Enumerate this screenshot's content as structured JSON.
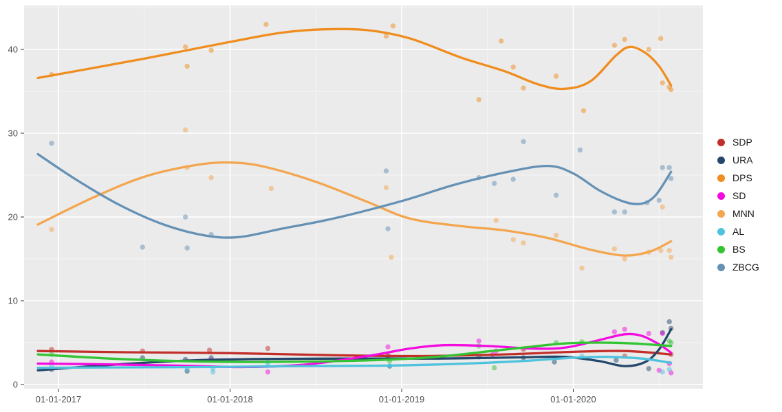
{
  "title": "",
  "background": {
    "page": "#ffffff",
    "panel": "#ebebeb",
    "grid_major": "#ffffff",
    "grid_minor": "#f7f7f7"
  },
  "axis": {
    "tick_color": "#4d4d4d",
    "tick_font_px": 13
  },
  "legend": {
    "position": "right",
    "title": ""
  },
  "chart_data": {
    "type": "scatter",
    "subtype": "scatter points with loess smooth lines",
    "title": "",
    "xlabel": "",
    "ylabel": "",
    "x_axis": {
      "ticks": [
        {
          "t": 2017.0,
          "label": "01-01-2017"
        },
        {
          "t": 2018.0,
          "label": "01-01-2018"
        },
        {
          "t": 2019.0,
          "label": "01-01-2019"
        },
        {
          "t": 2020.0,
          "label": "01-01-2020"
        }
      ],
      "minor": [
        2017.5,
        2018.5,
        2019.5,
        2020.5
      ],
      "range": [
        2016.8,
        2020.76
      ]
    },
    "y_axis": {
      "ticks": [
        0,
        10,
        20,
        30,
        40
      ],
      "minor": [
        5,
        15,
        25,
        35,
        45
      ],
      "range": [
        -0.5,
        45.2
      ]
    },
    "grid": true,
    "legend_position": "right",
    "series": [
      {
        "name": "SDP",
        "color": "#c22f2a",
        "points": [
          [
            2016.96,
            4.2
          ],
          [
            2017.49,
            4.0
          ],
          [
            2017.88,
            4.1
          ],
          [
            2018.22,
            4.3
          ],
          [
            2018.92,
            3.5
          ],
          [
            2019.71,
            4.2
          ],
          [
            2020.3,
            3.4
          ],
          [
            2020.57,
            3.6
          ]
        ],
        "smooth": [
          [
            2016.88,
            4.0
          ],
          [
            2017.4,
            3.85
          ],
          [
            2018.0,
            3.75
          ],
          [
            2018.6,
            3.5
          ],
          [
            2019.1,
            3.4
          ],
          [
            2019.6,
            3.6
          ],
          [
            2020.0,
            3.9
          ],
          [
            2020.3,
            4.0
          ],
          [
            2020.57,
            3.6
          ]
        ]
      },
      {
        "name": "URA",
        "color": "#24486b",
        "points": [
          [
            2016.96,
            1.8
          ],
          [
            2017.49,
            3.2
          ],
          [
            2017.74,
            3.0
          ],
          [
            2017.75,
            1.6
          ],
          [
            2017.89,
            3.2
          ],
          [
            2018.92,
            3.3
          ],
          [
            2018.93,
            2.2
          ],
          [
            2019.45,
            3.3
          ],
          [
            2019.71,
            3.2
          ],
          [
            2019.89,
            2.7
          ],
          [
            2020.25,
            2.9
          ],
          [
            2020.44,
            1.9
          ],
          [
            2020.52,
            6.2
          ],
          [
            2020.56,
            7.5
          ],
          [
            2020.57,
            6.7
          ]
        ],
        "smooth": [
          [
            2016.88,
            1.7
          ],
          [
            2017.2,
            2.2
          ],
          [
            2017.5,
            2.6
          ],
          [
            2017.8,
            2.9
          ],
          [
            2018.2,
            3.05
          ],
          [
            2018.7,
            3.1
          ],
          [
            2019.2,
            3.1
          ],
          [
            2019.7,
            3.25
          ],
          [
            2019.95,
            3.3
          ],
          [
            2020.15,
            2.8
          ],
          [
            2020.3,
            2.2
          ],
          [
            2020.42,
            2.7
          ],
          [
            2020.5,
            4.2
          ],
          [
            2020.57,
            6.6
          ]
        ]
      },
      {
        "name": "DPS",
        "color": "#ef8d1f",
        "points": [
          [
            2016.96,
            37.0
          ],
          [
            2017.74,
            40.3
          ],
          [
            2017.75,
            38.0
          ],
          [
            2017.89,
            39.9
          ],
          [
            2018.21,
            43.0
          ],
          [
            2018.91,
            41.6
          ],
          [
            2018.95,
            42.8
          ],
          [
            2019.45,
            34.0
          ],
          [
            2019.58,
            41.0
          ],
          [
            2019.65,
            37.9
          ],
          [
            2019.71,
            35.4
          ],
          [
            2019.9,
            36.8
          ],
          [
            2020.06,
            32.7
          ],
          [
            2020.24,
            40.5
          ],
          [
            2020.3,
            41.2
          ],
          [
            2020.44,
            40.0
          ],
          [
            2020.51,
            41.3
          ],
          [
            2020.52,
            36.0
          ],
          [
            2020.56,
            35.5
          ],
          [
            2020.57,
            35.2
          ]
        ],
        "smooth": [
          [
            2016.88,
            36.6
          ],
          [
            2017.5,
            38.9
          ],
          [
            2018.0,
            40.9
          ],
          [
            2018.3,
            42.0
          ],
          [
            2018.55,
            42.4
          ],
          [
            2018.8,
            42.3
          ],
          [
            2019.05,
            41.3
          ],
          [
            2019.35,
            39.0
          ],
          [
            2019.6,
            37.4
          ],
          [
            2019.8,
            35.8
          ],
          [
            2019.95,
            35.3
          ],
          [
            2020.1,
            36.2
          ],
          [
            2020.25,
            39.3
          ],
          [
            2020.33,
            40.3
          ],
          [
            2020.42,
            39.6
          ],
          [
            2020.5,
            38.0
          ],
          [
            2020.57,
            35.7
          ]
        ]
      },
      {
        "name": "SD",
        "color": "#f30be0",
        "points": [
          [
            2016.96,
            2.7
          ],
          [
            2017.89,
            2.9
          ],
          [
            2018.22,
            1.5
          ],
          [
            2018.92,
            4.5
          ],
          [
            2019.45,
            5.2
          ],
          [
            2019.53,
            3.6
          ],
          [
            2019.55,
            4.0
          ],
          [
            2020.24,
            6.3
          ],
          [
            2020.3,
            6.6
          ],
          [
            2020.44,
            6.1
          ],
          [
            2020.52,
            6.1
          ],
          [
            2020.5,
            1.7
          ],
          [
            2020.56,
            2.5
          ],
          [
            2020.57,
            1.4
          ]
        ],
        "smooth": [
          [
            2016.88,
            2.5
          ],
          [
            2017.3,
            2.4
          ],
          [
            2017.7,
            2.25
          ],
          [
            2018.1,
            2.1
          ],
          [
            2018.45,
            2.4
          ],
          [
            2018.8,
            3.4
          ],
          [
            2019.05,
            4.3
          ],
          [
            2019.25,
            4.7
          ],
          [
            2019.5,
            4.6
          ],
          [
            2019.75,
            4.3
          ],
          [
            2019.95,
            4.4
          ],
          [
            2020.15,
            5.3
          ],
          [
            2020.3,
            6.0
          ],
          [
            2020.4,
            5.8
          ],
          [
            2020.5,
            4.8
          ],
          [
            2020.57,
            3.8
          ]
        ]
      },
      {
        "name": "MNN",
        "color": "#f3a64f",
        "points": [
          [
            2016.96,
            18.5
          ],
          [
            2017.74,
            30.4
          ],
          [
            2017.75,
            25.9
          ],
          [
            2017.89,
            24.7
          ],
          [
            2018.24,
            23.4
          ],
          [
            2018.91,
            23.5
          ],
          [
            2018.94,
            15.2
          ],
          [
            2019.55,
            19.6
          ],
          [
            2019.65,
            17.3
          ],
          [
            2019.71,
            16.9
          ],
          [
            2019.9,
            17.8
          ],
          [
            2020.05,
            13.9
          ],
          [
            2020.24,
            16.2
          ],
          [
            2020.3,
            15.0
          ],
          [
            2020.44,
            15.8
          ],
          [
            2020.51,
            16.0
          ],
          [
            2020.52,
            21.2
          ],
          [
            2020.56,
            16.0
          ],
          [
            2020.57,
            15.2
          ]
        ],
        "smooth": [
          [
            2016.88,
            19.1
          ],
          [
            2017.2,
            22.3
          ],
          [
            2017.5,
            24.8
          ],
          [
            2017.8,
            26.2
          ],
          [
            2018.0,
            26.5
          ],
          [
            2018.2,
            26.0
          ],
          [
            2018.5,
            24.2
          ],
          [
            2018.8,
            21.8
          ],
          [
            2019.05,
            19.8
          ],
          [
            2019.35,
            18.9
          ],
          [
            2019.6,
            18.4
          ],
          [
            2019.85,
            17.5
          ],
          [
            2020.1,
            16.1
          ],
          [
            2020.3,
            15.4
          ],
          [
            2020.45,
            15.9
          ],
          [
            2020.57,
            17.1
          ]
        ]
      },
      {
        "name": "AL",
        "color": "#4fc2dd",
        "points": [
          [
            2016.96,
            2.2
          ],
          [
            2017.75,
            1.8
          ],
          [
            2017.9,
            1.9
          ],
          [
            2017.9,
            1.5
          ],
          [
            2018.22,
            2.3
          ],
          [
            2018.22,
            2.7
          ],
          [
            2018.93,
            2.2
          ],
          [
            2020.05,
            3.4
          ],
          [
            2020.52,
            1.5
          ],
          [
            2020.56,
            1.8
          ]
        ],
        "smooth": [
          [
            2016.88,
            2.0
          ],
          [
            2017.4,
            2.05
          ],
          [
            2017.9,
            2.1
          ],
          [
            2018.4,
            2.2
          ],
          [
            2018.9,
            2.25
          ],
          [
            2019.3,
            2.45
          ],
          [
            2019.7,
            2.8
          ],
          [
            2020.0,
            3.2
          ],
          [
            2020.2,
            3.3
          ],
          [
            2020.4,
            3.1
          ],
          [
            2020.57,
            2.6
          ]
        ]
      },
      {
        "name": "BS",
        "color": "#33c433",
        "points": [
          [
            2016.96,
            3.6
          ],
          [
            2018.93,
            2.8
          ],
          [
            2019.45,
            4.6
          ],
          [
            2019.54,
            2.0
          ],
          [
            2019.9,
            5.0
          ],
          [
            2020.05,
            5.1
          ],
          [
            2020.56,
            5.2
          ],
          [
            2020.57,
            5.0
          ]
        ],
        "smooth": [
          [
            2016.88,
            3.6
          ],
          [
            2017.3,
            3.1
          ],
          [
            2017.7,
            2.8
          ],
          [
            2018.1,
            2.7
          ],
          [
            2018.5,
            2.75
          ],
          [
            2018.9,
            2.95
          ],
          [
            2019.2,
            3.3
          ],
          [
            2019.5,
            3.95
          ],
          [
            2019.75,
            4.5
          ],
          [
            2019.95,
            4.9
          ],
          [
            2020.15,
            5.0
          ],
          [
            2020.35,
            4.9
          ],
          [
            2020.57,
            4.6
          ]
        ]
      },
      {
        "name": "ZBCG",
        "color": "#6591b5",
        "points": [
          [
            2016.96,
            28.8
          ],
          [
            2017.49,
            16.4
          ],
          [
            2017.74,
            20.0
          ],
          [
            2017.75,
            16.3
          ],
          [
            2017.89,
            17.9
          ],
          [
            2018.91,
            25.5
          ],
          [
            2018.92,
            18.6
          ],
          [
            2019.45,
            24.7
          ],
          [
            2019.54,
            24.0
          ],
          [
            2019.65,
            24.5
          ],
          [
            2019.71,
            29.0
          ],
          [
            2019.9,
            22.6
          ],
          [
            2020.04,
            28.0
          ],
          [
            2020.24,
            20.6
          ],
          [
            2020.3,
            20.6
          ],
          [
            2020.43,
            21.7
          ],
          [
            2020.5,
            22.0
          ],
          [
            2020.52,
            25.9
          ],
          [
            2020.56,
            25.9
          ],
          [
            2020.57,
            24.6
          ]
        ],
        "smooth": [
          [
            2016.88,
            27.5
          ],
          [
            2017.1,
            24.5
          ],
          [
            2017.35,
            21.5
          ],
          [
            2017.6,
            19.2
          ],
          [
            2017.85,
            17.8
          ],
          [
            2018.05,
            17.6
          ],
          [
            2018.3,
            18.6
          ],
          [
            2018.6,
            19.8
          ],
          [
            2019.0,
            21.9
          ],
          [
            2019.3,
            23.8
          ],
          [
            2019.6,
            25.3
          ],
          [
            2019.85,
            26.1
          ],
          [
            2020.0,
            25.2
          ],
          [
            2020.15,
            23.2
          ],
          [
            2020.3,
            21.8
          ],
          [
            2020.4,
            21.6
          ],
          [
            2020.48,
            22.6
          ],
          [
            2020.57,
            25.4
          ]
        ]
      }
    ]
  }
}
